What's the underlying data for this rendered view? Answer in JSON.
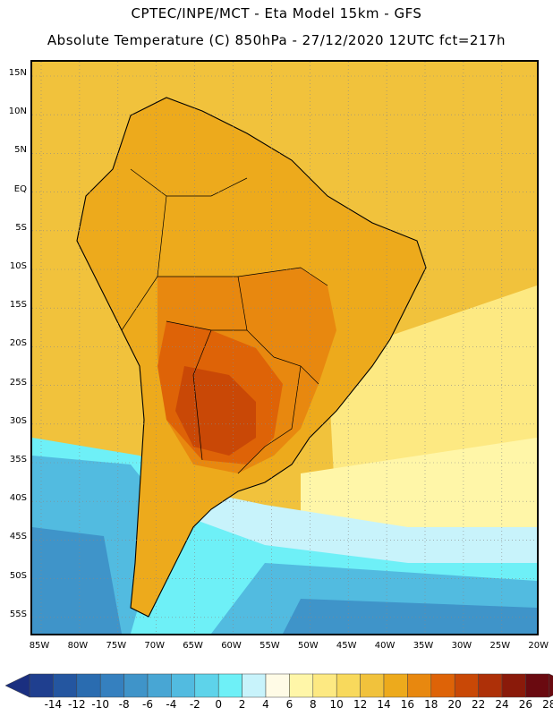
{
  "header": {
    "line1": "CPTEC/INPE/MCT  -   Eta Model 15km  - GFS",
    "line2": "Absolute Temperature (C) 850hPa - 27/12/2020 12UTC fct=217h"
  },
  "axes": {
    "lat_labels": [
      "15N",
      "10N",
      "5N",
      "EQ",
      "5S",
      "10S",
      "15S",
      "20S",
      "25S",
      "30S",
      "35S",
      "40S",
      "45S",
      "50S",
      "55S"
    ],
    "lon_labels": [
      "85W",
      "80W",
      "75W",
      "70W",
      "65W",
      "60W",
      "55W",
      "50W",
      "45W",
      "40W",
      "35W",
      "30W",
      "25W",
      "20W"
    ]
  },
  "colorbar": {
    "labels": [
      "-14",
      "-12",
      "-10",
      "-8",
      "-6",
      "-4",
      "-2",
      "0",
      "2",
      "4",
      "6",
      "8",
      "10",
      "12",
      "14",
      "16",
      "18",
      "20",
      "22",
      "24",
      "26",
      "28"
    ],
    "colors": [
      "#1f3f8f",
      "#2456a0",
      "#2a6cb0",
      "#3580bf",
      "#3f94c9",
      "#48a6d4",
      "#52bbe0",
      "#5ed3ea",
      "#6ef0f7",
      "#c8f3fb",
      "#fffbe6",
      "#fff6a8",
      "#fde982",
      "#f8d95c",
      "#f1c23c",
      "#edaa1c",
      "#e8880f",
      "#de6307",
      "#c94806",
      "#ae3008",
      "#8a1a0a",
      "#6a0a10"
    ],
    "low_arrow_color": "#1a2f80",
    "high_arrow_color": "#6a0a10"
  },
  "map_colors": {
    "sea_tropical": "#f1c23c",
    "land_warm": "#edaa1c",
    "land_hot": "#e8880f",
    "hot_core": "#de6307",
    "hottest": "#c94806",
    "subtrop_sea": "#fde982",
    "mid_sea": "#fff6a8",
    "front": "#c8f3fb",
    "cold_sea": "#6ef0f7",
    "colder_sea": "#52bbe0",
    "coldest_sea": "#3f94c9",
    "coastline": "#000000"
  }
}
